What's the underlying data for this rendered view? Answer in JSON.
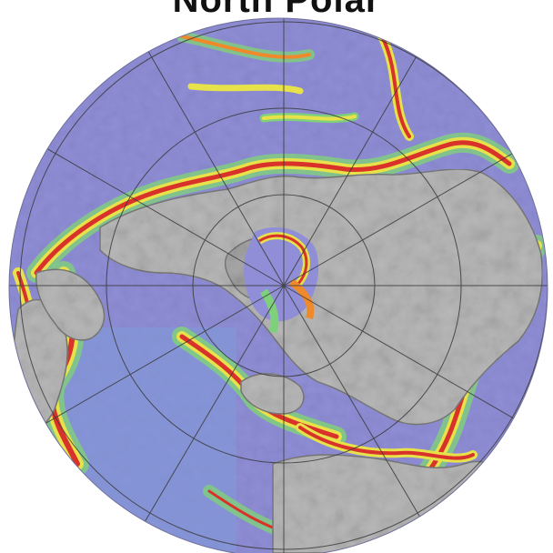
{
  "figure": {
    "title_partial": "North Polar",
    "projection": "polar-azimuthal",
    "center": "north-pole",
    "graticule": true,
    "colors": {
      "ocean_deep": "#8f8ed6",
      "ocean_mid": "#7f9bd8",
      "shelf_green": "#7fd07a",
      "shelf_yellow": "#e8e24a",
      "margin_orange": "#ef8a2c",
      "margin_red": "#d9322b",
      "land_gray": "#b9b9b9",
      "land_dark": "#8c8c8c",
      "graticule_line": "#3a3a3a"
    }
  }
}
